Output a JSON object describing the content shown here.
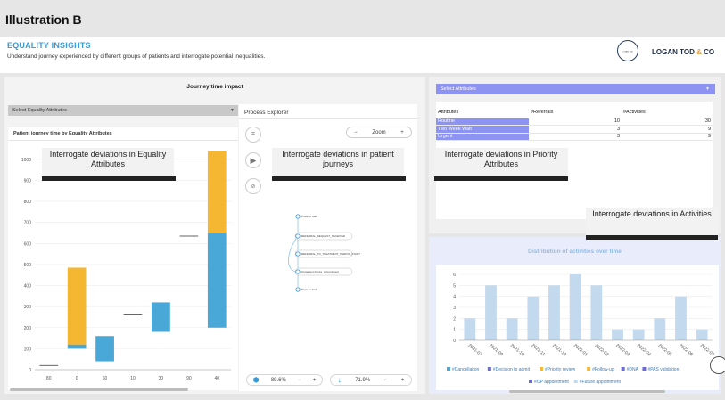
{
  "page_title": "Illustration B",
  "header": {
    "title": "EQUALITY INSIGHTS",
    "subtitle": "Understand journey experienced by different groups of patients and interrogate potential inequalities.",
    "logo_mark": "LOGAN TOD",
    "brand_name": "LOGAN TOD",
    "brand_amp": "&",
    "brand_suffix": "CO",
    "brand_accent_color": "#e7a23b"
  },
  "journey_panel": {
    "title": "Journey time impact",
    "select_placeholder": "Select Equality Attributes",
    "chart_card_title": "Patient journey time by Equality Attributes"
  },
  "callouts": {
    "equality": "Interrogate deviations in Equality Attributes",
    "journeys": "Interrogate deviations in patient journeys",
    "priority": "Interrogate deviations in Priority Attributes",
    "activities": "Interrogate deviations in Activities"
  },
  "process_explorer": {
    "title": "Process Explorer",
    "zoom_label": "Zoom",
    "zoom_minus": "−",
    "zoom_plus": "+",
    "icons": [
      "graph-icon",
      "play-icon",
      "eye-slash-icon"
    ],
    "nodes": [
      "Process Start",
      "REFERRAL_REQUEST_RECEIVED",
      "REFERRAL_TO_TREATMENT_PERIOD_START",
      "Outpatient Future_Appointment",
      "Process End"
    ],
    "activity_slider": "89.6%",
    "path_slider": "71.9%",
    "slider_minus": "−",
    "slider_plus": "+"
  },
  "attributes_panel": {
    "select_placeholder": "Select Attributes",
    "columns": [
      "Attributes",
      "#Referrals",
      "#Activities"
    ],
    "rows": [
      {
        "attribute": "Routine",
        "referrals": "10",
        "activities": "30"
      },
      {
        "attribute": "Two Week Wait",
        "referrals": "3",
        "activities": "9"
      },
      {
        "attribute": "Urgent",
        "referrals": "3",
        "activities": "9"
      }
    ],
    "highlight_color": "#8d93f0"
  },
  "chart_data": [
    {
      "type": "bar",
      "title": "Patient journey time by Equality Attributes",
      "categories": [
        "80",
        "0",
        "60",
        "10",
        "30",
        "90",
        "40"
      ],
      "ylim": [
        0,
        1050
      ],
      "yticks": [
        "0",
        "100",
        "200",
        "300",
        "400",
        "500",
        "600",
        "700",
        "800",
        "900",
        "1000"
      ],
      "series": [
        {
          "color": "#4aa8d8",
          "values": [
            [
              null,
              null
            ],
            [
              100,
              120
            ],
            [
              40,
              160
            ],
            [
              null,
              null
            ],
            [
              180,
              320
            ],
            [
              null,
              null
            ],
            [
              200,
              650
            ]
          ]
        },
        {
          "color": "#f5b731",
          "values": [
            [
              null,
              null
            ],
            [
              120,
              485
            ],
            [
              null,
              null
            ],
            [
              null,
              null
            ],
            [
              null,
              null
            ],
            [
              null,
              null
            ],
            [
              650,
              1040
            ]
          ]
        }
      ],
      "markers": [
        {
          "category": "80",
          "value": 20
        },
        {
          "category": "10",
          "value": 260
        },
        {
          "category": "90",
          "value": 635
        }
      ],
      "grid": true
    },
    {
      "type": "bar",
      "title": "Distribution of activities over time",
      "categories": [
        "2021-07",
        "2021-09",
        "2021-10",
        "2021-11",
        "2021-12",
        "2022-01",
        "2022-02",
        "2022-03",
        "2022-04",
        "2022-05",
        "2022-06",
        "2022-07"
      ],
      "values": [
        2,
        5,
        2,
        4,
        5,
        6,
        5,
        1,
        1,
        2,
        4,
        1
      ],
      "ylim": [
        0,
        6
      ],
      "yticks": [
        "0",
        "1",
        "2",
        "3",
        "4",
        "5",
        "6"
      ],
      "color": "#c3d9ed",
      "legend": [
        "#Cancellation",
        "#Decision to admit",
        "#Priority review",
        "#Follow-up",
        "#DNA",
        "#PAS validation",
        "#OP appointment",
        "#Future appointment"
      ],
      "legend_colors": [
        "#4aa8d8",
        "#6a6ad8",
        "#f5b731",
        "#f5b731",
        "#6a6ad8",
        "#6a6ad8",
        "#6a6ad8",
        "#c3d9ed"
      ],
      "legend_placement": "bottom",
      "grid": true
    }
  ]
}
